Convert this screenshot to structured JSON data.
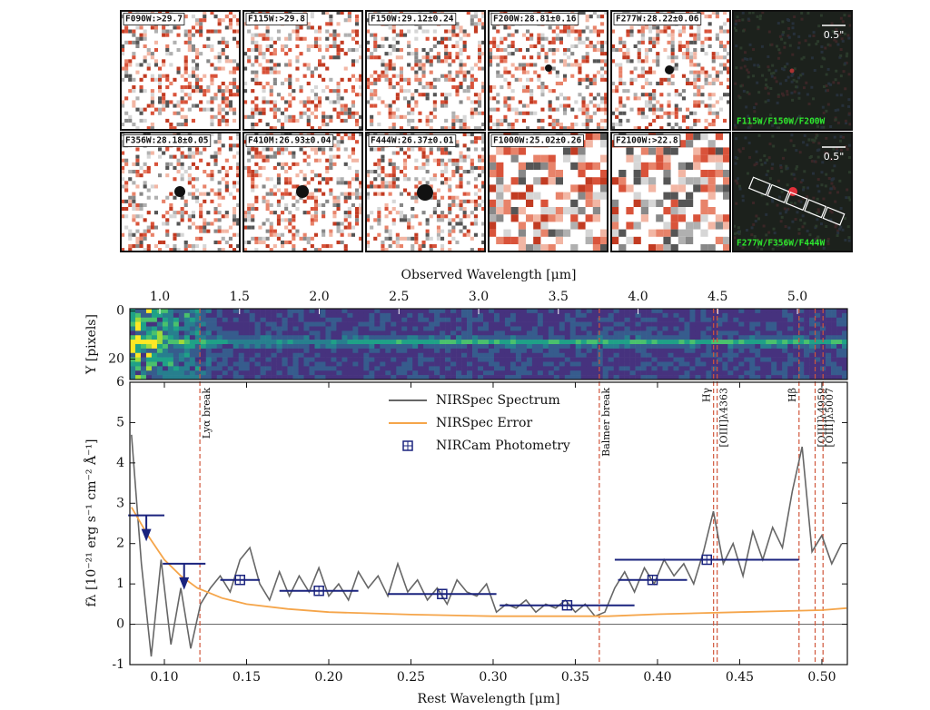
{
  "cutouts": [
    {
      "label": "F090W:>29.7"
    },
    {
      "label": "F115W:>29.8"
    },
    {
      "label": "F150W:29.12±0.24"
    },
    {
      "label": "F200W:28.81±0.16"
    },
    {
      "label": "F277W:28.22±0.06"
    },
    {
      "label": "F356W:28.18±0.05"
    },
    {
      "label": "F410M:26.93±0.04"
    },
    {
      "label": "F444W:26.37±0.01"
    },
    {
      "label": "F1000W:25.02±0.26"
    },
    {
      "label": "F2100W:>22.8"
    }
  ],
  "color_panels": [
    {
      "label": "F115W/F150W/F200W",
      "scale": "0.5\""
    },
    {
      "label": "F277W/F356W/F444W",
      "scale": "0.5\""
    }
  ],
  "chart_data": [
    {
      "type": "heatmap",
      "ylabel": "Y [pixels]",
      "ylim": [
        -1,
        28.5
      ],
      "yticks": [
        0,
        20
      ]
    },
    {
      "type": "line",
      "x2label": "Observed Wavelength [μm]",
      "x2lim": [
        0.812,
        5.313
      ],
      "x2ticks": [
        {
          "value": 1.0,
          "label": "1.0"
        },
        1.5,
        {
          "value": 2.0,
          "label": "2.0"
        },
        2.5,
        {
          "value": 3.0,
          "label": "3.0"
        },
        3.5,
        {
          "value": 4.0,
          "label": "4.0"
        },
        4.5,
        {
          "value": 5.0,
          "label": "5.0"
        }
      ],
      "xlabel": "Rest Wavelength [μm]",
      "ylabel": "fλ [10⁻²¹ erg s⁻¹ cm⁻² Å⁻¹]",
      "xlim": [
        0.079,
        0.5155
      ],
      "ylim": [
        -1,
        6
      ],
      "xticks": [
        {
          "value": 0.1,
          "label": "0.10"
        },
        0.15,
        {
          "value": 0.2,
          "label": "0.20"
        },
        0.25,
        {
          "value": 0.3,
          "label": "0.30"
        },
        0.35,
        {
          "value": 0.4,
          "label": "0.40"
        },
        0.45,
        {
          "value": 0.5,
          "label": "0.50"
        }
      ],
      "yticks": [
        -1,
        0,
        1,
        2,
        3,
        4,
        5,
        6
      ],
      "legend": "upper center",
      "series": [
        {
          "name": "NIRSpec Spectrum",
          "color": "#666666",
          "x": [
            0.08,
            0.086,
            0.092,
            0.098,
            0.104,
            0.11,
            0.116,
            0.122,
            0.128,
            0.134,
            0.14,
            0.146,
            0.152,
            0.158,
            0.164,
            0.17,
            0.176,
            0.182,
            0.188,
            0.194,
            0.2,
            0.206,
            0.212,
            0.218,
            0.224,
            0.23,
            0.236,
            0.242,
            0.248,
            0.254,
            0.26,
            0.266,
            0.272,
            0.278,
            0.284,
            0.29,
            0.296,
            0.302,
            0.308,
            0.314,
            0.32,
            0.326,
            0.332,
            0.338,
            0.344,
            0.35,
            0.356,
            0.362,
            0.368,
            0.374,
            0.38,
            0.386,
            0.392,
            0.398,
            0.404,
            0.41,
            0.416,
            0.422,
            0.428,
            0.434,
            0.44,
            0.446,
            0.452,
            0.458,
            0.464,
            0.47,
            0.476,
            0.482,
            0.488,
            0.494,
            0.5,
            0.506,
            0.512
          ],
          "values": [
            4.7,
            1.5,
            -0.8,
            1.6,
            -0.5,
            0.9,
            -0.6,
            0.5,
            0.9,
            1.2,
            0.8,
            1.6,
            1.9,
            1.0,
            0.6,
            1.3,
            0.7,
            1.2,
            0.8,
            1.4,
            0.7,
            1.0,
            0.6,
            1.3,
            0.9,
            1.2,
            0.7,
            1.5,
            0.8,
            1.1,
            0.6,
            0.9,
            0.5,
            1.1,
            0.8,
            0.7,
            1.0,
            0.3,
            0.5,
            0.4,
            0.6,
            0.3,
            0.5,
            0.4,
            0.6,
            0.3,
            0.5,
            0.2,
            0.3,
            0.9,
            1.3,
            0.8,
            1.4,
            1.0,
            1.6,
            1.2,
            1.5,
            1.0,
            1.8,
            2.8,
            1.5,
            2.0,
            1.2,
            2.3,
            1.6,
            2.4,
            1.9,
            3.3,
            4.4,
            1.8,
            2.2,
            1.5,
            2.0
          ]
        },
        {
          "name": "NIRSpec Error",
          "color": "#f5a54a",
          "x": [
            0.08,
            0.09,
            0.1,
            0.11,
            0.12,
            0.135,
            0.15,
            0.175,
            0.2,
            0.25,
            0.3,
            0.35,
            0.37,
            0.4,
            0.45,
            0.5,
            0.515
          ],
          "values": [
            2.9,
            2.2,
            1.6,
            1.2,
            0.9,
            0.65,
            0.5,
            0.38,
            0.3,
            0.24,
            0.2,
            0.2,
            0.2,
            0.25,
            0.3,
            0.35,
            0.4
          ]
        },
        {
          "name": "NIRCam Photometry",
          "color": "#1a237e",
          "marker": "square-cross",
          "x": [
            0.089,
            0.112,
            0.146,
            0.194,
            0.269,
            0.345,
            0.397,
            0.43
          ],
          "values": [
            2.7,
            1.5,
            1.1,
            0.83,
            0.75,
            0.47,
            1.1,
            1.6
          ],
          "xerr": [
            0.011,
            0.013,
            0.012,
            0.024,
            0.033,
            0.041,
            0.021,
            0.056
          ],
          "upper_limit": [
            true,
            true,
            false,
            false,
            false,
            false,
            false,
            false
          ]
        }
      ],
      "lines": [
        {
          "x": 0.1216,
          "label": "Lyα break"
        },
        {
          "x": 0.3646,
          "label": "Balmer break"
        },
        {
          "x": 0.4341,
          "label": "Hγ"
        },
        {
          "x": 0.4363,
          "label": "[OIII]λ4363"
        },
        {
          "x": 0.4861,
          "label": "Hβ"
        },
        {
          "x": 0.4959,
          "label": "[OIII]λ4959"
        },
        {
          "x": 0.5007,
          "label": "[OIII]λ5007"
        }
      ]
    }
  ]
}
